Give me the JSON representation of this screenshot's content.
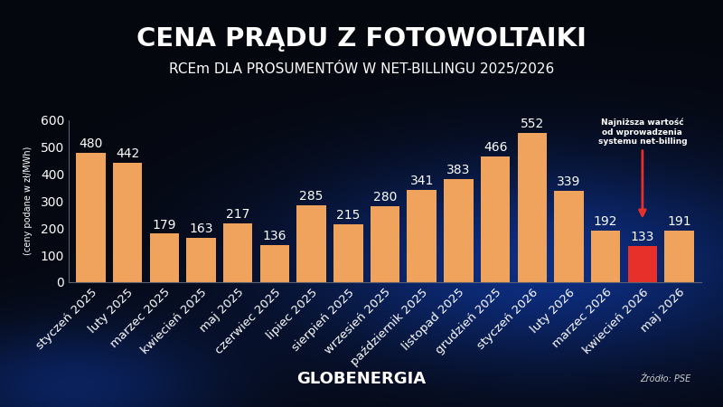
{
  "chart_data": {
    "type": "bar",
    "title": "CENA PRĄDU Z FOTOWOLTAIKI",
    "subtitle": "RCEm DLA PROSUMENTÓW W NET-BILLINGU 2025/2026",
    "ylabel": "(ceny podane w zł/MWh)",
    "categories": [
      "styczeń 2025",
      "luty 2025",
      "marzec 2025",
      "kwiecień 2025",
      "maj 2025",
      "czerwiec 2025",
      "lipiec 2025",
      "sierpień 2025",
      "wrzesień 2025",
      "październik 2025",
      "listopad 2025",
      "grudzień 2025",
      "styczeń 2026",
      "luty 2026",
      "marzec 2026",
      "kwiecień 2026",
      "maj 2026"
    ],
    "values": [
      480,
      442,
      179,
      163,
      217,
      136,
      285,
      215,
      280,
      341,
      383,
      466,
      552,
      339,
      192,
      133,
      191
    ],
    "colors": [
      "#f0a35c",
      "#f0a35c",
      "#f0a35c",
      "#f0a35c",
      "#f0a35c",
      "#f0a35c",
      "#f0a35c",
      "#f0a35c",
      "#f0a35c",
      "#f0a35c",
      "#f0a35c",
      "#f0a35c",
      "#f0a35c",
      "#f0a35c",
      "#f0a35c",
      "#e8302a",
      "#f0a35c"
    ],
    "ylim": [
      0,
      600
    ],
    "yticks": [
      0,
      100,
      200,
      300,
      400,
      500,
      600
    ],
    "grid": false,
    "data_labels": true,
    "annotations": [
      {
        "text": "Najniższa wartość\nod wprowadzenia\nsystemu net-billing",
        "category": "kwiecień 2026",
        "color": "#e8302a"
      }
    ],
    "brand": "GLOBENERGIA",
    "source": "Źródło: PSE"
  }
}
